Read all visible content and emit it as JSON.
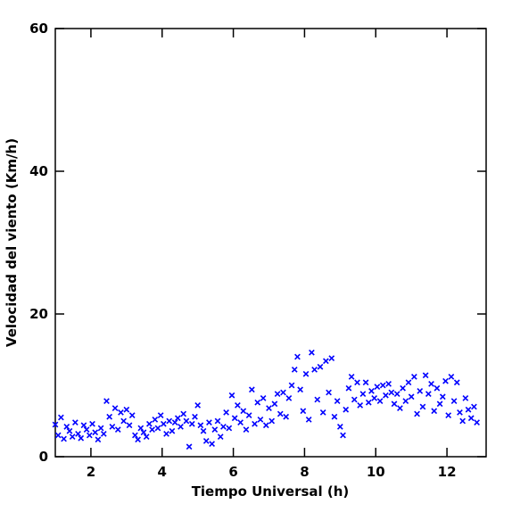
{
  "chart_data": {
    "type": "scatter",
    "xlabel": "Tiempo Universal (h)",
    "ylabel": "Velocidad del viento (Km/h)",
    "xlim": [
      1,
      13.1
    ],
    "ylim": [
      0,
      60
    ],
    "xticks": [
      2,
      4,
      6,
      8,
      10,
      12
    ],
    "yticks": [
      0,
      20,
      40,
      60
    ],
    "color": "#0000ff",
    "marker": "x",
    "x": [
      1.0,
      1.08,
      1.16,
      1.24,
      1.32,
      1.4,
      1.48,
      1.56,
      1.64,
      1.72,
      1.8,
      1.88,
      1.96,
      2.04,
      2.12,
      2.2,
      2.28,
      2.36,
      2.44,
      2.52,
      2.6,
      2.68,
      2.76,
      2.84,
      2.92,
      3.0,
      3.08,
      3.16,
      3.24,
      3.32,
      3.4,
      3.48,
      3.56,
      3.64,
      3.72,
      3.8,
      3.88,
      3.96,
      4.04,
      4.12,
      4.2,
      4.28,
      4.36,
      4.44,
      4.52,
      4.6,
      4.68,
      4.76,
      4.84,
      4.92,
      5.0,
      5.08,
      5.16,
      5.24,
      5.32,
      5.4,
      5.48,
      5.56,
      5.64,
      5.72,
      5.8,
      5.88,
      5.96,
      6.04,
      6.12,
      6.2,
      6.28,
      6.36,
      6.44,
      6.52,
      6.6,
      6.68,
      6.76,
      6.84,
      6.92,
      7.0,
      7.08,
      7.16,
      7.24,
      7.32,
      7.4,
      7.48,
      7.56,
      7.64,
      7.72,
      7.8,
      7.88,
      7.96,
      8.04,
      8.12,
      8.2,
      8.28,
      8.36,
      8.44,
      8.52,
      8.6,
      8.68,
      8.76,
      8.84,
      8.92,
      9.0,
      9.08,
      9.16,
      9.24,
      9.32,
      9.4,
      9.48,
      9.56,
      9.64,
      9.72,
      9.8,
      9.88,
      9.96,
      10.04,
      10.12,
      10.2,
      10.28,
      10.36,
      10.44,
      10.52,
      10.6,
      10.68,
      10.76,
      10.84,
      10.92,
      11.0,
      11.08,
      11.16,
      11.24,
      11.32,
      11.4,
      11.48,
      11.56,
      11.64,
      11.72,
      11.8,
      11.88,
      11.96,
      12.04,
      12.12,
      12.2,
      12.28,
      12.36,
      12.44,
      12.52,
      12.6,
      12.68,
      12.76,
      12.84
    ],
    "values": [
      4.5,
      3.0,
      5.5,
      2.5,
      4.2,
      3.6,
      2.8,
      4.8,
      3.2,
      2.6,
      4.4,
      3.8,
      3.0,
      4.6,
      3.4,
      2.4,
      4.0,
      3.2,
      7.8,
      5.6,
      4.2,
      6.8,
      3.8,
      6.2,
      5.0,
      6.6,
      4.4,
      5.8,
      3.0,
      2.4,
      4.0,
      3.4,
      2.8,
      4.6,
      3.8,
      5.2,
      4.0,
      5.8,
      4.6,
      3.2,
      5.0,
      3.6,
      4.8,
      5.4,
      4.2,
      6.0,
      5.0,
      1.4,
      4.6,
      5.6,
      7.2,
      4.4,
      3.6,
      2.2,
      4.8,
      1.8,
      3.8,
      5.0,
      2.8,
      4.2,
      6.2,
      4.0,
      8.6,
      5.4,
      7.2,
      4.8,
      6.4,
      3.8,
      5.8,
      9.4,
      4.6,
      7.6,
      5.2,
      8.2,
      4.4,
      6.8,
      5.0,
      7.4,
      8.8,
      6.0,
      9.0,
      5.6,
      8.2,
      10.0,
      12.2,
      14.0,
      9.4,
      6.4,
      11.6,
      5.2,
      14.6,
      12.2,
      8.0,
      12.6,
      6.2,
      13.4,
      9.0,
      13.8,
      5.6,
      7.8,
      4.2,
      3.0,
      6.6,
      9.6,
      11.2,
      8.0,
      10.4,
      7.2,
      8.8,
      10.4,
      7.6,
      9.2,
      8.2,
      9.8,
      7.8,
      10.0,
      8.6,
      10.2,
      9.0,
      7.4,
      8.8,
      6.8,
      9.6,
      7.8,
      10.4,
      8.4,
      11.2,
      6.0,
      9.2,
      7.0,
      11.4,
      8.8,
      10.2,
      6.4,
      9.6,
      7.4,
      8.4,
      10.6,
      5.8,
      11.2,
      7.8,
      10.4,
      6.2,
      5.0,
      8.2,
      6.6,
      5.4,
      7.0,
      4.8
    ]
  }
}
